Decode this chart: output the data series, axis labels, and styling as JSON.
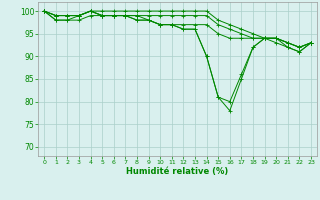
{
  "line1": {
    "x": [
      0,
      1,
      2,
      3,
      4,
      5,
      6,
      7,
      8,
      9,
      10,
      11,
      12,
      13,
      14,
      15,
      16,
      17,
      18,
      19,
      20,
      21,
      22,
      23
    ],
    "y": [
      100,
      99,
      99,
      99,
      100,
      100,
      100,
      100,
      100,
      100,
      100,
      100,
      100,
      100,
      100,
      98,
      97,
      96,
      95,
      94,
      94,
      93,
      92,
      93
    ]
  },
  "line2": {
    "x": [
      0,
      1,
      2,
      3,
      4,
      5,
      6,
      7,
      8,
      9,
      10,
      11,
      12,
      13,
      14,
      15,
      16,
      17,
      18,
      19,
      20,
      21,
      22,
      23
    ],
    "y": [
      100,
      99,
      99,
      99,
      100,
      99,
      99,
      99,
      99,
      99,
      99,
      99,
      99,
      99,
      99,
      97,
      96,
      95,
      94,
      94,
      94,
      93,
      92,
      93
    ]
  },
  "line3": {
    "x": [
      0,
      1,
      2,
      3,
      4,
      5,
      6,
      7,
      8,
      9,
      10,
      11,
      12,
      13,
      14,
      15,
      16,
      17,
      18,
      19,
      20,
      21,
      22,
      23
    ],
    "y": [
      100,
      99,
      99,
      99,
      100,
      99,
      99,
      99,
      98,
      98,
      97,
      97,
      97,
      97,
      97,
      95,
      94,
      94,
      94,
      94,
      94,
      93,
      92,
      93
    ]
  },
  "line4": {
    "x": [
      0,
      1,
      2,
      3,
      4,
      5,
      6,
      7,
      8,
      9,
      10,
      11,
      12,
      13,
      14,
      15,
      16,
      17,
      18,
      19,
      20,
      21,
      22,
      23
    ],
    "y": [
      100,
      98,
      98,
      98,
      99,
      99,
      99,
      99,
      98,
      98,
      97,
      97,
      96,
      96,
      90,
      81,
      80,
      86,
      92,
      94,
      94,
      92,
      91,
      93
    ]
  },
  "line5": {
    "x": [
      0,
      1,
      2,
      3,
      4,
      5,
      6,
      7,
      8,
      9,
      10,
      11,
      12,
      13,
      14,
      15,
      16,
      17,
      18,
      19,
      20,
      21,
      22,
      23
    ],
    "y": [
      100,
      98,
      98,
      99,
      100,
      99,
      99,
      99,
      99,
      98,
      97,
      97,
      96,
      96,
      90,
      81,
      78,
      85,
      92,
      94,
      93,
      92,
      91,
      93
    ]
  },
  "bg_color": "#d9f0ee",
  "grid_color": "#aacfca",
  "line_color": "#008800",
  "xlabel": "Humidité relative (%)",
  "xlabel_color": "#008800",
  "tick_color": "#008800",
  "ylim": [
    68,
    102
  ],
  "xlim": [
    -0.5,
    23.5
  ],
  "yticks": [
    70,
    75,
    80,
    85,
    90,
    95,
    100
  ],
  "xticks": [
    0,
    1,
    2,
    3,
    4,
    5,
    6,
    7,
    8,
    9,
    10,
    11,
    12,
    13,
    14,
    15,
    16,
    17,
    18,
    19,
    20,
    21,
    22,
    23
  ],
  "xtick_labels": [
    "0",
    "1",
    "2",
    "3",
    "4",
    "5",
    "6",
    "7",
    "8",
    "9",
    "10",
    "11",
    "12",
    "13",
    "14",
    "15",
    "16",
    "17",
    "18",
    "19",
    "20",
    "21",
    "22",
    "23"
  ]
}
